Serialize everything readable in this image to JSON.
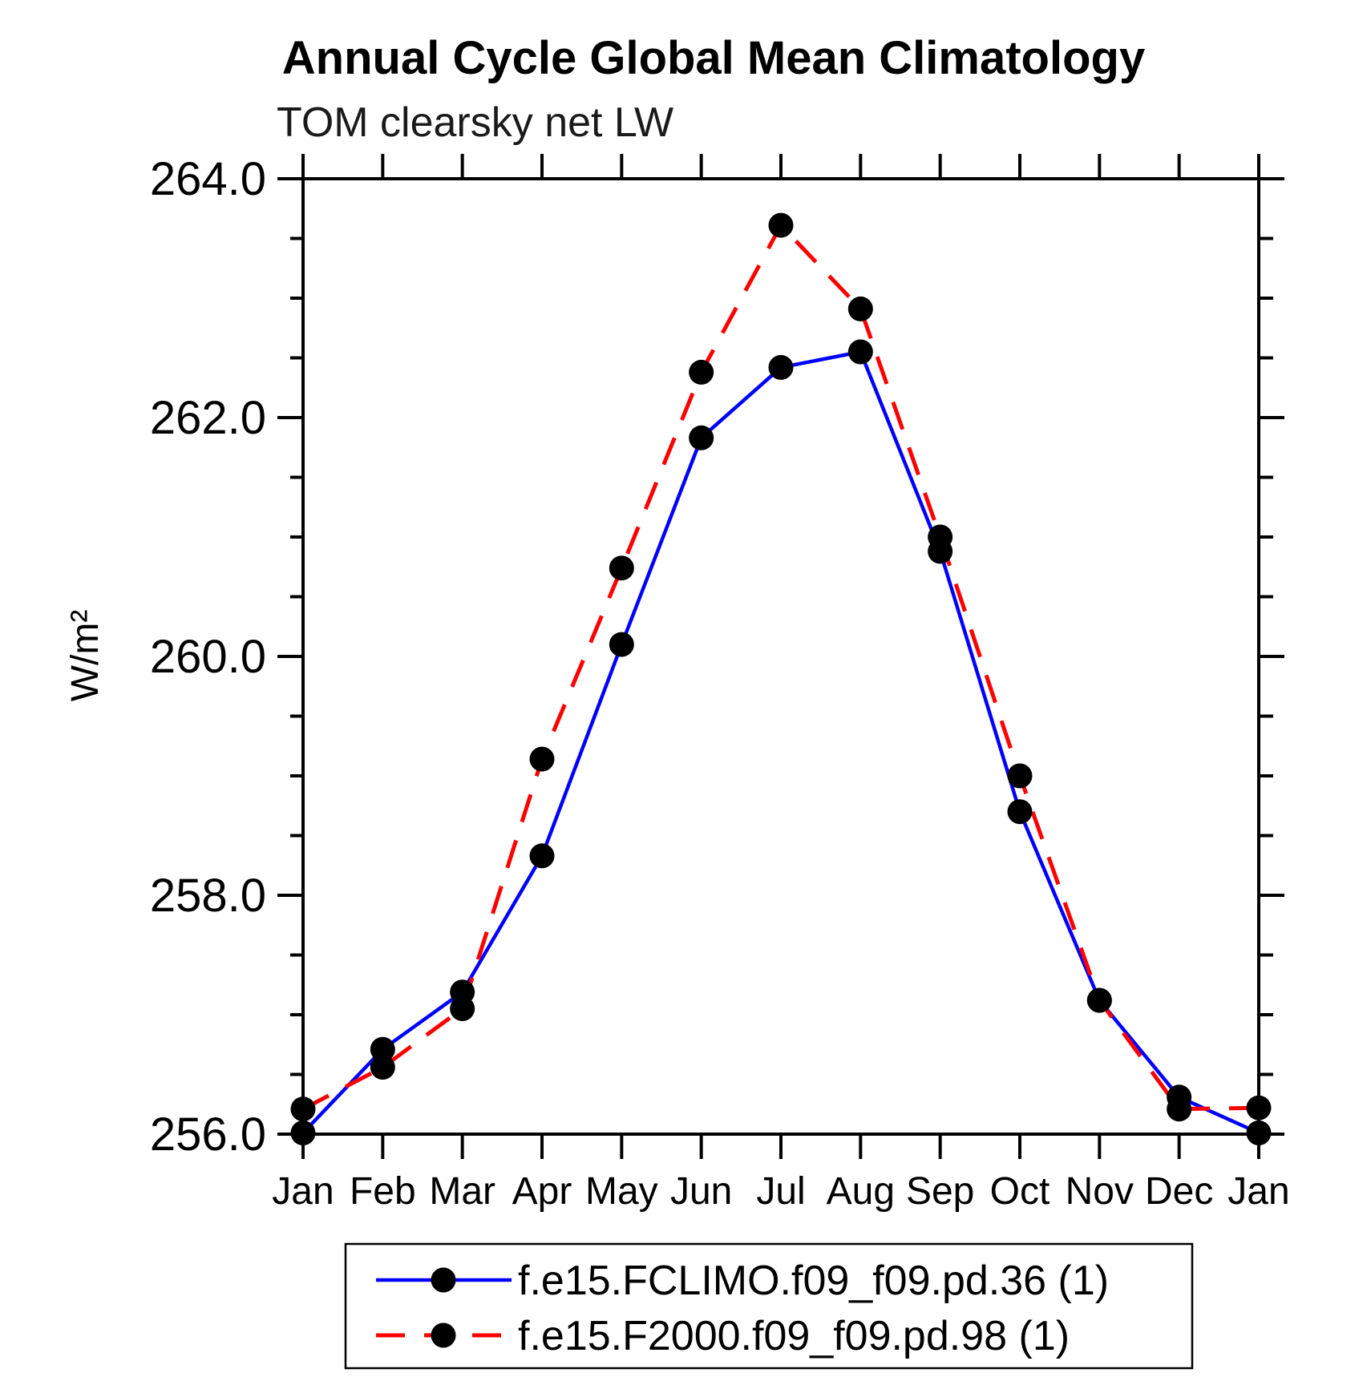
{
  "chart_data": {
    "type": "line",
    "title": "Annual Cycle Global Mean Climatology",
    "subtitle": "TOM clearsky net LW",
    "ylabel": "W/m²",
    "x_categories": [
      "Jan",
      "Feb",
      "Mar",
      "Apr",
      "May",
      "Jun",
      "Jul",
      "Aug",
      "Sep",
      "Oct",
      "Nov",
      "Dec",
      "Jan"
    ],
    "ylim": [
      256.0,
      264.0
    ],
    "y_major_ticks": [
      256.0,
      258.0,
      260.0,
      262.0,
      264.0
    ],
    "y_major_tick_labels": [
      "256.0",
      "258.0",
      "260.0",
      "262.0",
      "264.0"
    ],
    "y_minor_step": 0.5,
    "grid": false,
    "legend_position": "bottom",
    "marker_color": "#000000",
    "axis_color": "#000000",
    "series": [
      {
        "name": "f.e15.FCLIMO.f09_f09.pd.36 (1)",
        "color": "#0000ff",
        "style": "solid",
        "marker": "circle",
        "values": [
          256.01,
          256.71,
          257.19,
          258.33,
          260.1,
          261.83,
          262.42,
          262.55,
          260.88,
          258.7,
          257.12,
          256.31,
          256.01
        ]
      },
      {
        "name": "f.e15.F2000.f09_f09.pd.98 (1)",
        "color": "#ff0000",
        "style": "dashed",
        "marker": "circle",
        "values": [
          256.21,
          256.56,
          257.05,
          259.14,
          260.74,
          262.38,
          263.61,
          262.91,
          261.0,
          259.0,
          257.12,
          256.21,
          256.22
        ]
      }
    ]
  }
}
